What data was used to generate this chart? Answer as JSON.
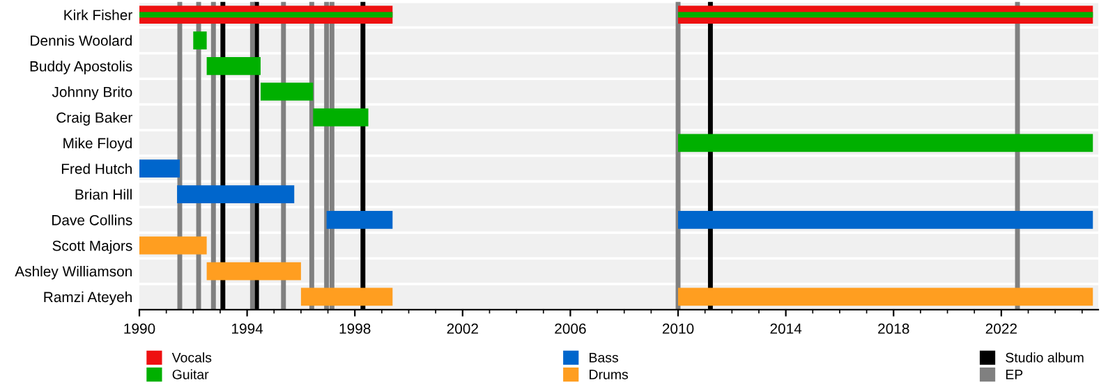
{
  "chart_data": {
    "type": "bar",
    "orientation": "horizontal",
    "categories": [
      "Kirk Fisher",
      "Dennis Woolard",
      "Buddy Apostolis",
      "Johnny Brito",
      "Craig Baker",
      "Mike Floyd",
      "Fred Hutch",
      "Brian Hill",
      "Dave Collins",
      "Scott Majors",
      "Ashley Williamson",
      "Ramzi Ateyeh"
    ],
    "series": [
      {
        "name": "Vocals",
        "color": "#ee1111",
        "base": [
          1990,
          null,
          null,
          null,
          null,
          null,
          null,
          null,
          null,
          null,
          null,
          null
        ],
        "values": [
          9.4,
          null,
          null,
          null,
          null,
          null,
          null,
          null,
          null,
          null,
          null,
          null
        ]
      },
      {
        "name": "Guitar",
        "color": "#00b000",
        "base": [
          1990,
          1992.0,
          1992.5,
          1994.5,
          1996.45,
          null,
          null,
          null,
          null,
          null,
          null,
          null
        ],
        "values": [
          9.4,
          0.5,
          2.0,
          1.95,
          2.05,
          null,
          null,
          null,
          null,
          null,
          null,
          null
        ]
      },
      {
        "name": "Bass",
        "color": "#0066cc",
        "base": [
          null,
          null,
          null,
          null,
          null,
          null,
          1990,
          1991.4,
          1996.95,
          null,
          null,
          null
        ],
        "values": [
          null,
          null,
          null,
          null,
          null,
          null,
          1.5,
          4.35,
          2.45,
          null,
          null,
          null
        ]
      },
      {
        "name": "Drums",
        "color": "#ff9e20",
        "base": [
          null,
          null,
          null,
          null,
          null,
          null,
          null,
          null,
          null,
          1990,
          1992.5,
          1996.0
        ],
        "values": [
          null,
          null,
          null,
          null,
          null,
          null,
          null,
          null,
          null,
          2.5,
          3.5,
          3.4
        ]
      },
      {
        "color": "#ee1111",
        "base": [
          2010,
          null,
          null,
          null,
          null,
          null,
          null,
          null,
          null,
          null,
          null,
          null
        ],
        "values": [
          15.4,
          null,
          null,
          null,
          null,
          null,
          null,
          null,
          null,
          null,
          null,
          null
        ]
      },
      {
        "color": "#00b000",
        "base": [
          2010,
          null,
          null,
          null,
          null,
          2010,
          null,
          null,
          null,
          null,
          null,
          null
        ],
        "values": [
          15.4,
          null,
          null,
          null,
          null,
          15.4,
          null,
          null,
          null,
          null,
          null,
          null
        ]
      },
      {
        "color": "#0066cc",
        "base": [
          null,
          null,
          null,
          null,
          null,
          null,
          null,
          null,
          2010,
          null,
          null,
          null
        ],
        "values": [
          null,
          null,
          null,
          null,
          null,
          null,
          null,
          null,
          15.4,
          null,
          null,
          null
        ]
      },
      {
        "color": "#ff9e20",
        "base": [
          null,
          null,
          null,
          null,
          null,
          null,
          null,
          null,
          null,
          null,
          null,
          2010
        ],
        "values": [
          null,
          null,
          null,
          null,
          null,
          null,
          null,
          null,
          null,
          null,
          null,
          15.4
        ]
      }
    ],
    "ref_lines": [
      {
        "axis": "x",
        "value": 1993.1,
        "color": "#000000",
        "label": "Studio album"
      },
      {
        "axis": "x",
        "value": 1994.35,
        "color": "#000000"
      },
      {
        "axis": "x",
        "value": 1998.3,
        "color": "#000000"
      },
      {
        "axis": "x",
        "value": 2011.2,
        "color": "#000000"
      },
      {
        "axis": "x",
        "value": 1991.5,
        "color": "#808080",
        "label": "EP"
      },
      {
        "axis": "x",
        "value": 1992.2,
        "color": "#808080"
      },
      {
        "axis": "x",
        "value": 1992.75,
        "color": "#808080"
      },
      {
        "axis": "x",
        "value": 1994.2,
        "color": "#808080"
      },
      {
        "axis": "x",
        "value": 1995.35,
        "color": "#808080"
      },
      {
        "axis": "x",
        "value": 1996.4,
        "color": "#808080"
      },
      {
        "axis": "x",
        "value": 1996.95,
        "color": "#808080"
      },
      {
        "axis": "x",
        "value": 1997.15,
        "color": "#808080"
      },
      {
        "axis": "x",
        "value": 2010.0,
        "color": "#808080"
      },
      {
        "axis": "x",
        "value": 2022.6,
        "color": "#808080"
      }
    ],
    "xlim": [
      1990,
      2025.6
    ],
    "xticks": [
      1990,
      1994,
      1998,
      2002,
      2006,
      2010,
      2014,
      2018,
      2022
    ],
    "grid": "y",
    "legend": "bottom"
  }
}
